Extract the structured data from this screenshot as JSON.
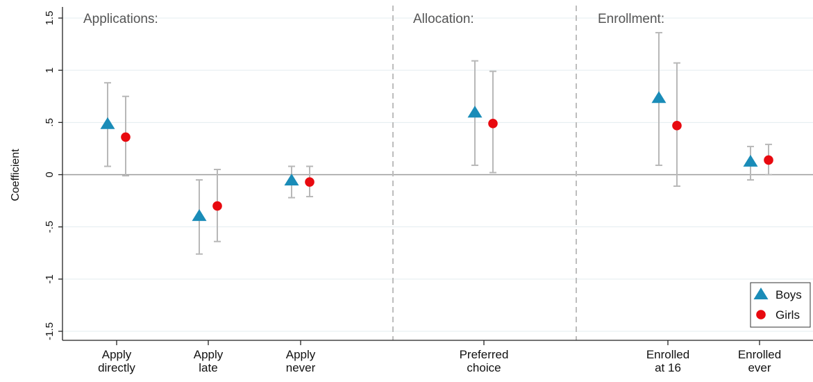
{
  "chart_data": {
    "type": "scatter",
    "ylabel": "Coefficient",
    "ylim": [
      -1.5,
      1.5
    ],
    "yticks": [
      {
        "value": -1.5,
        "label": "-1.5"
      },
      {
        "value": -1,
        "label": "-1"
      },
      {
        "value": -0.5,
        "label": "-.5"
      },
      {
        "value": 0,
        "label": "0"
      },
      {
        "value": 0.5,
        "label": ".5"
      },
      {
        "value": 1,
        "label": "1"
      },
      {
        "value": 1.5,
        "label": "1.5"
      }
    ],
    "grid": true,
    "zero_line": true,
    "sections": [
      "Applications:",
      "Allocation:",
      "Enrollment:"
    ],
    "categories": [
      {
        "lines": [
          "Apply",
          "directly"
        ]
      },
      {
        "lines": [
          "Apply",
          "late"
        ]
      },
      {
        "lines": [
          "Apply",
          "never"
        ]
      },
      {
        "lines": [
          "Preferred",
          "choice"
        ]
      },
      {
        "lines": [
          "Enrolled",
          "at 16"
        ]
      },
      {
        "lines": [
          "Enrolled",
          "ever"
        ]
      }
    ],
    "series": [
      {
        "name": "Boys",
        "marker": "triangle",
        "color": "#1a8cb8",
        "points": [
          {
            "y": 0.48,
            "ci": [
              0.08,
              0.88
            ]
          },
          {
            "y": -0.4,
            "ci": [
              -0.76,
              -0.05
            ]
          },
          {
            "y": -0.06,
            "ci": [
              -0.22,
              0.08
            ]
          },
          {
            "y": 0.59,
            "ci": [
              0.09,
              1.09
            ]
          },
          {
            "y": 0.73,
            "ci": [
              0.09,
              1.36
            ]
          },
          {
            "y": 0.12,
            "ci": [
              -0.05,
              0.27
            ]
          }
        ]
      },
      {
        "name": "Girls",
        "marker": "circle",
        "color": "#e8090f",
        "points": [
          {
            "y": 0.36,
            "ci": [
              -0.01,
              0.75
            ]
          },
          {
            "y": -0.3,
            "ci": [
              -0.64,
              0.05
            ]
          },
          {
            "y": -0.07,
            "ci": [
              -0.21,
              0.08
            ]
          },
          {
            "y": 0.49,
            "ci": [
              0.02,
              0.99
            ]
          },
          {
            "y": 0.47,
            "ci": [
              -0.11,
              1.07
            ]
          },
          {
            "y": 0.14,
            "ci": [
              0.0,
              0.29
            ]
          }
        ]
      }
    ],
    "legend": {
      "position": "bottom-right",
      "entries": [
        "Boys",
        "Girls"
      ]
    },
    "colors": {
      "gridline": "#e3ecef",
      "ci": "#b8b8b8",
      "divider": "#bdbdbd",
      "zero": "#9a9a9a"
    }
  }
}
